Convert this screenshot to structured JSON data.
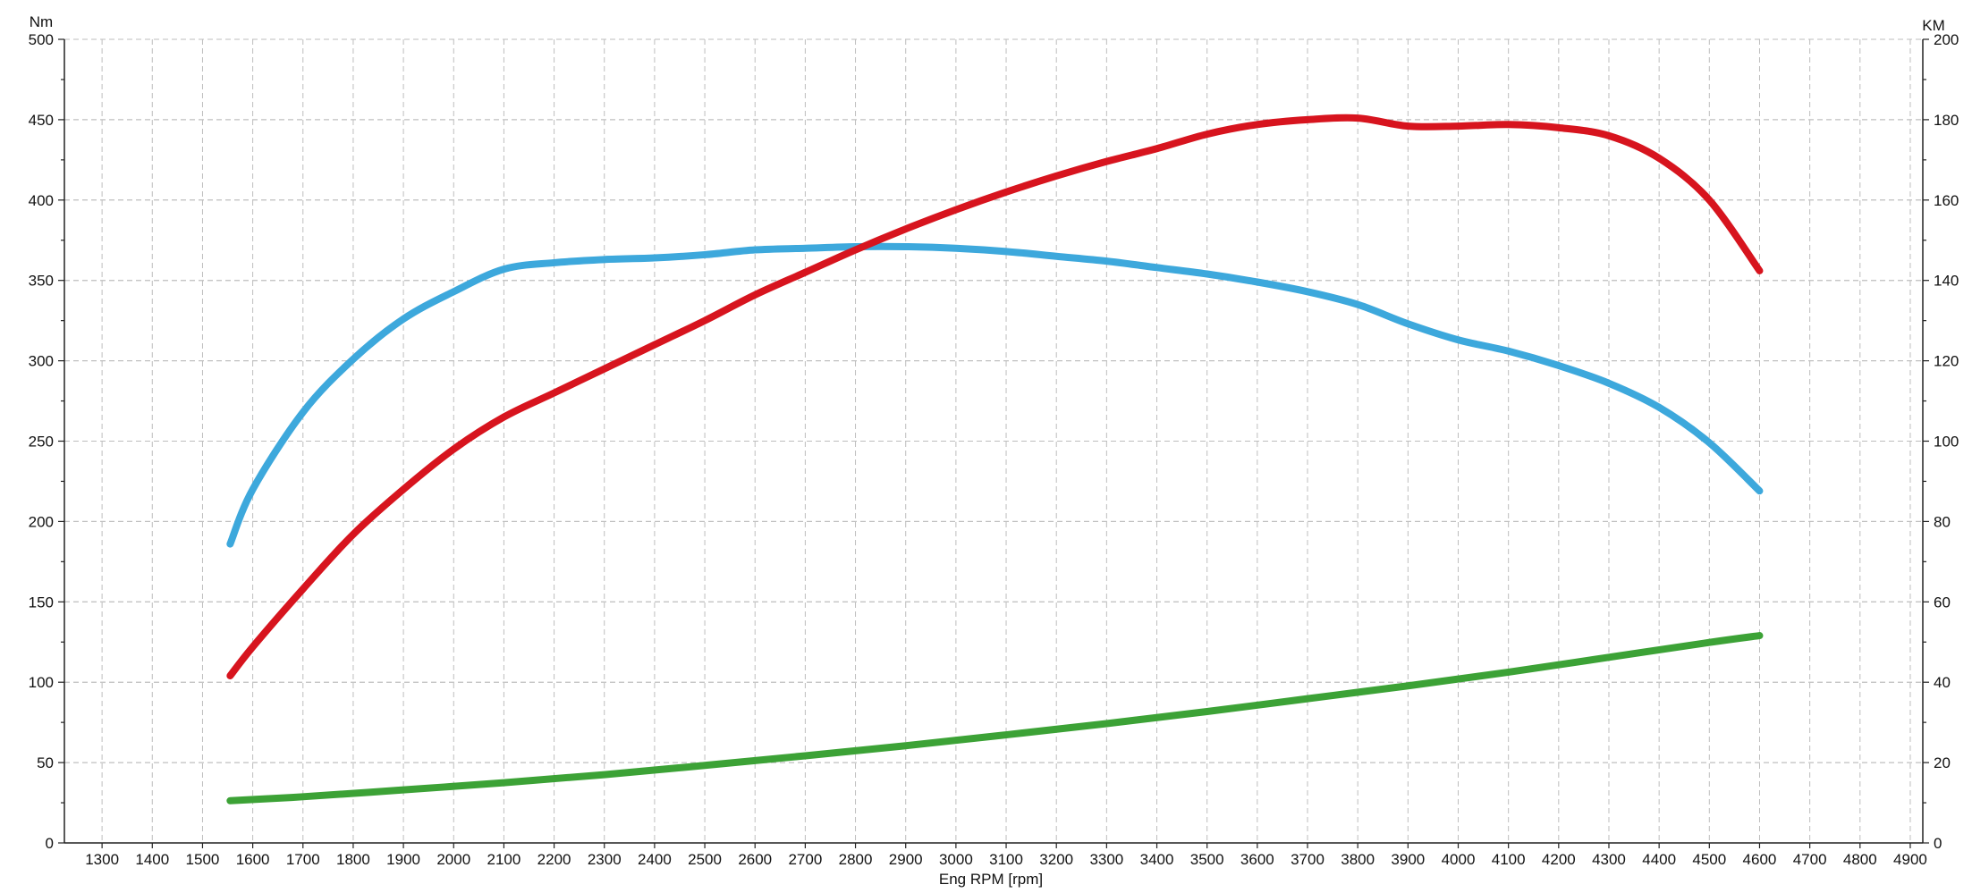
{
  "chart_data": {
    "type": "line",
    "xlabel": "Eng RPM [rpm]",
    "ylabel_left": "Nm",
    "ylabel_right": "KM",
    "xlim": [
      1225,
      4925
    ],
    "xticks": [
      1300,
      1400,
      1500,
      1600,
      1700,
      1800,
      1900,
      2000,
      2100,
      2200,
      2300,
      2400,
      2500,
      2600,
      2700,
      2800,
      2900,
      3000,
      3100,
      3200,
      3300,
      3400,
      3500,
      3600,
      3700,
      3800,
      3900,
      4000,
      4100,
      4200,
      4300,
      4400,
      4500,
      4600,
      4700,
      4800,
      4900
    ],
    "ylim_left": [
      0,
      500
    ],
    "yticks_left": [
      0,
      50,
      100,
      150,
      200,
      250,
      300,
      350,
      400,
      450,
      500
    ],
    "ylim_right": [
      0,
      200
    ],
    "yticks_right": [
      0,
      20,
      40,
      60,
      80,
      100,
      120,
      140,
      160,
      180,
      200
    ],
    "grid": true,
    "series": [
      {
        "axis": "left",
        "color": "#3da8dc",
        "x": [
          1555,
          1600,
          1700,
          1800,
          1900,
          2000,
          2100,
          2200,
          2300,
          2400,
          2500,
          2600,
          2700,
          2800,
          2900,
          3000,
          3100,
          3200,
          3300,
          3400,
          3500,
          3600,
          3700,
          3800,
          3900,
          4000,
          4100,
          4200,
          4300,
          4400,
          4500,
          4600
        ],
        "y": [
          186,
          220,
          268,
          301,
          326,
          343,
          357,
          361,
          363,
          364,
          366,
          369,
          370,
          371,
          371,
          370,
          368,
          365,
          362,
          358,
          354,
          349,
          343,
          335,
          323,
          313,
          306,
          297,
          286,
          271,
          249,
          219
        ]
      },
      {
        "axis": "left",
        "color": "#d7141e",
        "x": [
          1555,
          1600,
          1700,
          1800,
          1900,
          2000,
          2100,
          2200,
          2300,
          2400,
          2500,
          2600,
          2700,
          2800,
          2900,
          3000,
          3100,
          3200,
          3300,
          3400,
          3500,
          3600,
          3700,
          3800,
          3900,
          4000,
          4100,
          4200,
          4300,
          4400,
          4500,
          4600
        ],
        "y": [
          104,
          122,
          158,
          192,
          220,
          245,
          265,
          280,
          295,
          310,
          325,
          341,
          355,
          369,
          382,
          394,
          405,
          415,
          424,
          432,
          441,
          447,
          450,
          451,
          446,
          446,
          447,
          445,
          440,
          426,
          400,
          356
        ]
      },
      {
        "axis": "right",
        "color": "#3ca236",
        "x": [
          1555,
          1700,
          1900,
          2100,
          2300,
          2500,
          2700,
          2900,
          3100,
          3300,
          3500,
          3700,
          3900,
          4100,
          4300,
          4500,
          4600
        ],
        "y": [
          10.5,
          11.5,
          13.2,
          15.0,
          17.0,
          19.3,
          21.7,
          24.2,
          26.9,
          29.7,
          32.7,
          35.9,
          39.1,
          42.5,
          46.2,
          49.9,
          51.6
        ]
      }
    ]
  }
}
